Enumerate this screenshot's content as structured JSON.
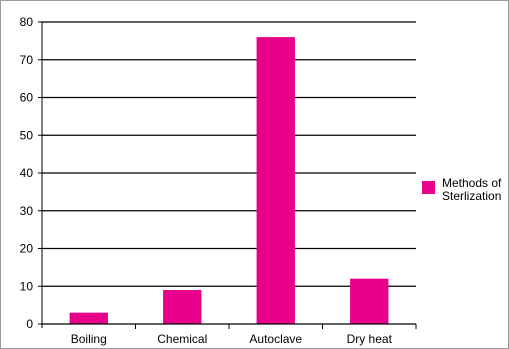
{
  "chart_data": {
    "type": "bar",
    "categories": [
      "Boiling",
      "Chemical",
      "Autoclave",
      "Dry heat"
    ],
    "series": [
      {
        "name": "Methods of Sterlization",
        "values": [
          3,
          9,
          76,
          12
        ],
        "color": "#e8008a"
      }
    ],
    "legend": {
      "lines": [
        "Methods of",
        "Sterlization"
      ],
      "position": "right"
    },
    "ylim": [
      0,
      80
    ],
    "yticks": [
      0,
      10,
      20,
      30,
      40,
      50,
      60,
      70,
      80
    ],
    "grid": true,
    "title": "",
    "xlabel": "",
    "ylabel": ""
  }
}
